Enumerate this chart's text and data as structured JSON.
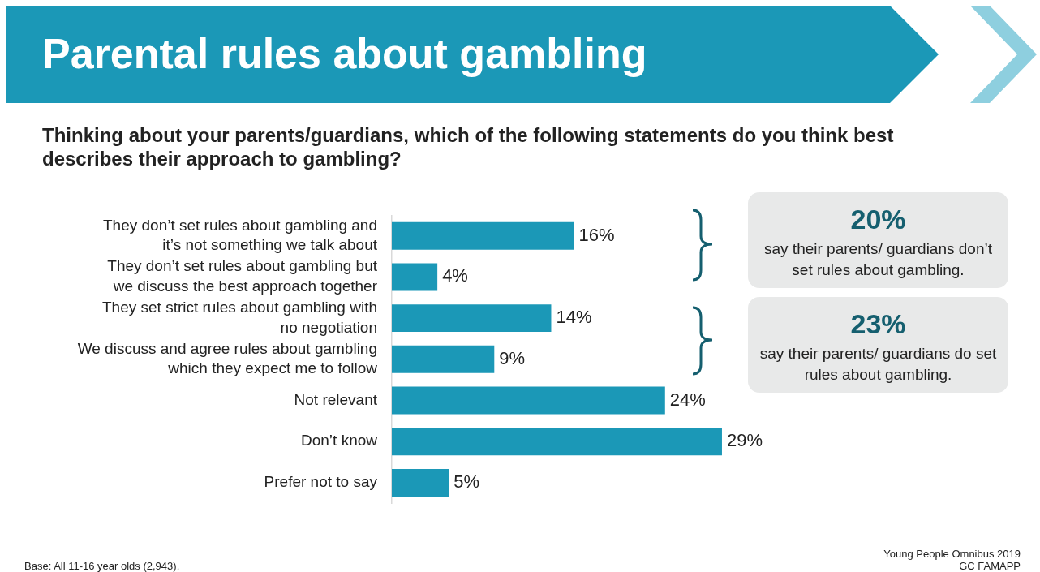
{
  "chart_data": {
    "type": "bar",
    "orientation": "horizontal",
    "title": "Parental rules about gambling",
    "subtitle": "Thinking about your parents/guardians, which of the following statements do you think best describes their approach to gambling?",
    "categories": [
      "They don’t set rules about gambling and it’s not something we talk about",
      "They don’t set rules about gambling but we discuss the best approach together",
      "They set strict rules about gambling with no negotiation",
      "We discuss and agree rules about gambling which they expect me to follow",
      "Not relevant",
      "Don’t know",
      "Prefer not to say"
    ],
    "values": [
      16,
      4,
      14,
      9,
      24,
      29,
      5
    ],
    "value_labels": [
      "16%",
      "4%",
      "14%",
      "9%",
      "24%",
      "29%",
      "5%"
    ],
    "color": "#1b98b7",
    "tick_labels": "y",
    "annotations": [
      "20%",
      "say their parents/ guardians don’t set rules about gambling.",
      "23%",
      "say their parents/ guardians do set rules about gambling.",
      "Young People Omnibus 2019",
      "GC  FAMAPP",
      "Base: All 11-16 year olds (2,943)."
    ]
  }
}
